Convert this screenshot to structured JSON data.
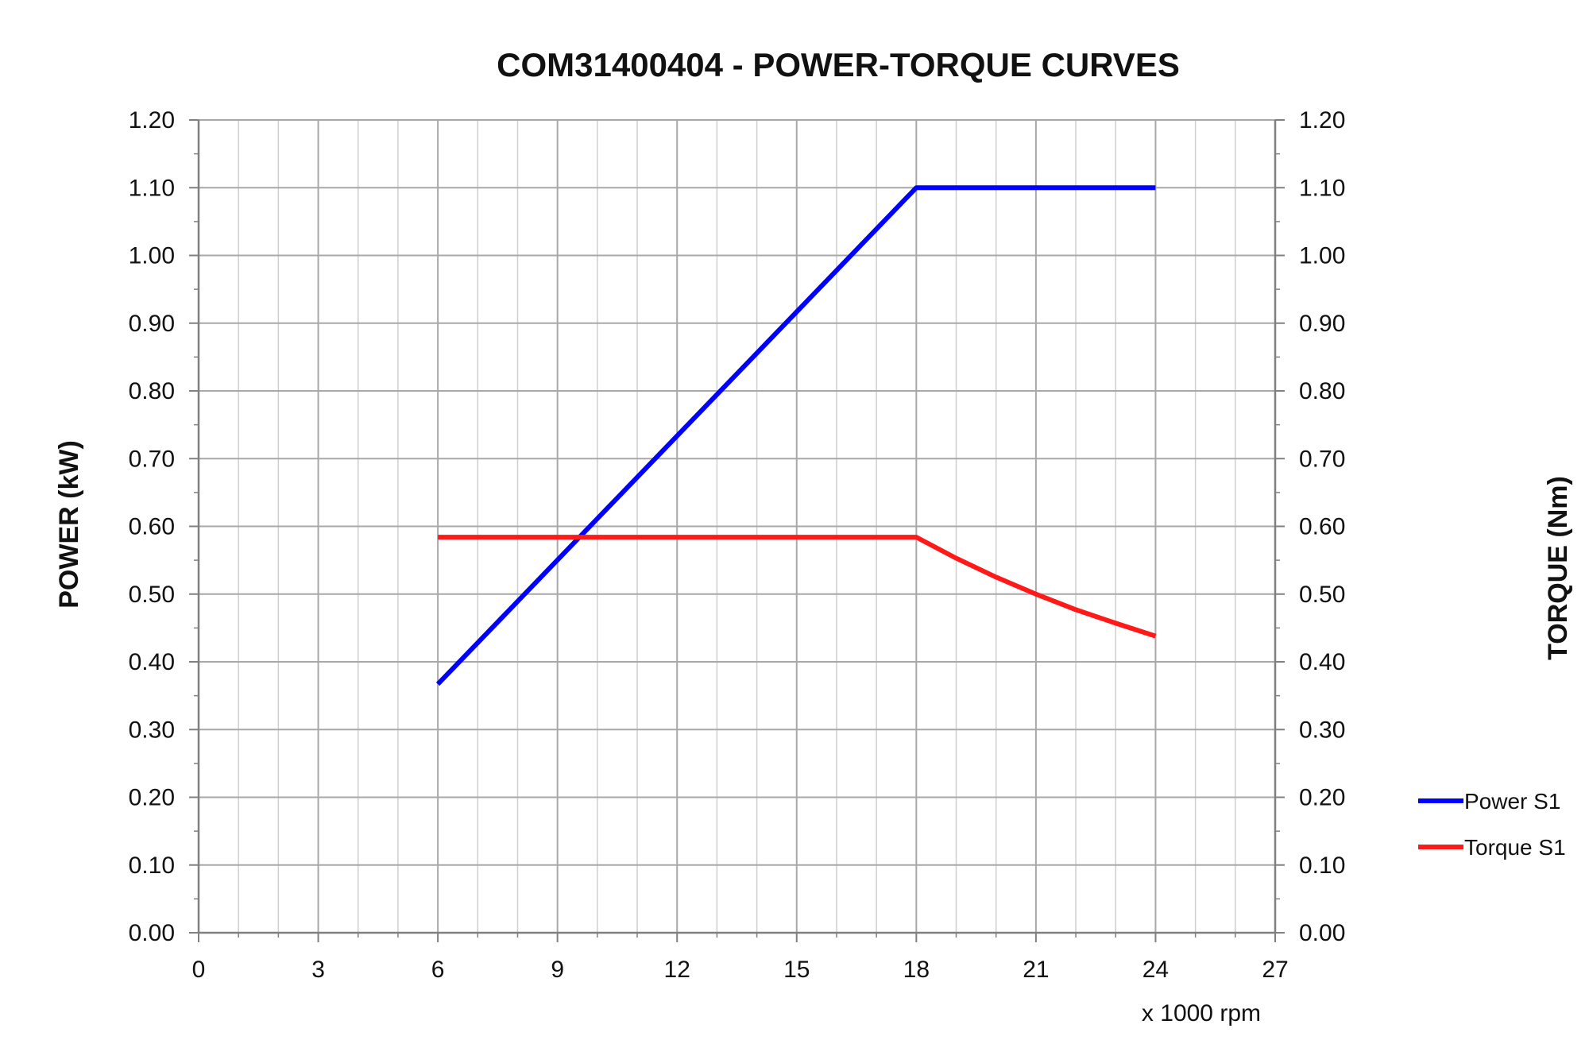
{
  "chart_data": {
    "type": "line",
    "title": "COM31400404 - POWER-TORQUE CURVES",
    "xlabel": "x 1000 rpm",
    "ylabel": "POWER (kW)",
    "y2label": "TORQUE (Nm)",
    "xlim": [
      0,
      27
    ],
    "ylim": [
      0,
      1.2
    ],
    "y2lim": [
      0,
      1.2
    ],
    "x_ticks": [
      "0",
      "3",
      "6",
      "9",
      "12",
      "15",
      "18",
      "21",
      "24",
      "27"
    ],
    "y_ticks": [
      "0.00",
      "0.10",
      "0.20",
      "0.30",
      "0.40",
      "0.50",
      "0.60",
      "0.70",
      "0.80",
      "0.90",
      "1.00",
      "1.10",
      "1.20"
    ],
    "y2_ticks": [
      "0.00",
      "0.10",
      "0.20",
      "0.30",
      "0.40",
      "0.50",
      "0.60",
      "0.70",
      "0.80",
      "0.90",
      "1.00",
      "1.10",
      "1.20"
    ],
    "grid": true,
    "legend_position": "right",
    "series": [
      {
        "name": "Power S1",
        "color": "#0000ff",
        "axis": "left",
        "points": [
          [
            6,
            0.367
          ],
          [
            18,
            1.1
          ],
          [
            24,
            1.1
          ]
        ]
      },
      {
        "name": "Torque S1",
        "color": "#ff1a1a",
        "axis": "right",
        "points": [
          [
            6,
            0.584
          ],
          [
            18,
            0.584
          ],
          [
            19,
            0.553
          ],
          [
            20,
            0.525
          ],
          [
            21,
            0.5
          ],
          [
            22,
            0.477
          ],
          [
            23,
            0.457
          ],
          [
            24,
            0.438
          ]
        ]
      }
    ]
  }
}
